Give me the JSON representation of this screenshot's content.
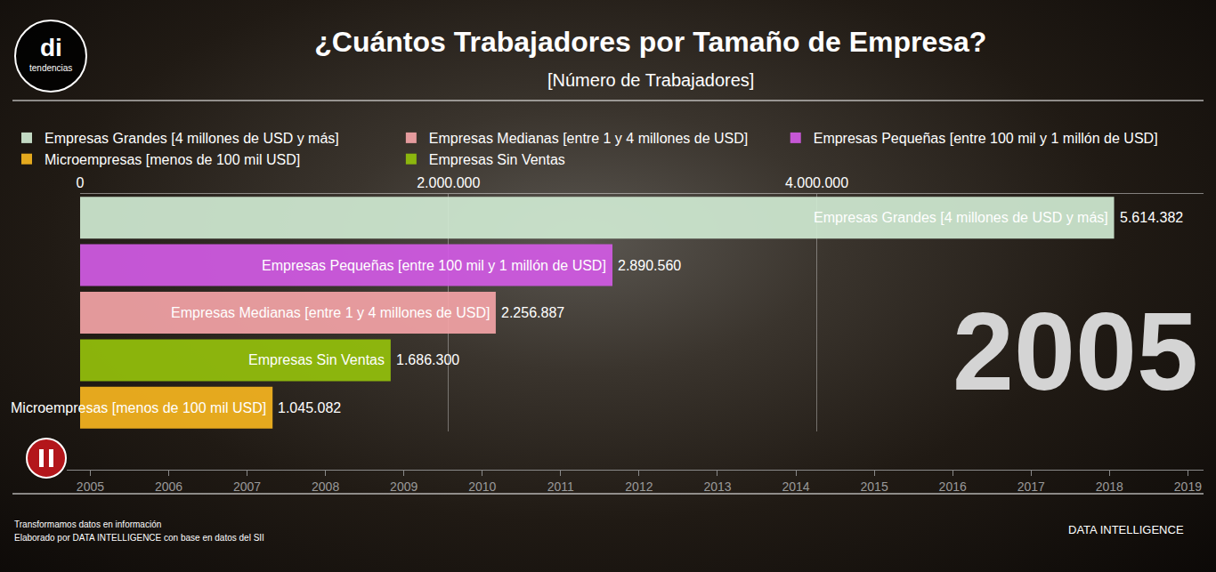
{
  "header": {
    "logo_mark": "di",
    "logo_text": "tendencias"
  },
  "chart_data": {
    "type": "bar",
    "orientation": "horizontal",
    "title": "¿Cuántos Trabajadores por Tamaño de Empresa?",
    "subtitle": "[Número de Trabajadores]",
    "categories": [
      "Empresas Grandes [4 millones de USD y más]",
      "Empresas Pequeñas [entre 100 mil y 1 millón de USD]",
      "Empresas Medianas [entre 1 y 4 millones de USD]",
      "Empresas Sin Ventas",
      "Microempresas [menos de 100 mil USD]"
    ],
    "series": [
      {
        "name": "Empresas Grandes [4 millones de USD y más]",
        "color": "#cfe8d1",
        "values": [
          5614382,
          null,
          null,
          null,
          null
        ],
        "value_labels": [
          "5.614.382",
          null,
          null,
          null,
          null
        ]
      },
      {
        "name": "Empresas Medianas [entre 1 y 4 millones de USD]",
        "color": "#f2a3a6",
        "values": [
          null,
          null,
          2256887,
          null,
          null
        ],
        "value_labels": [
          null,
          null,
          "2.256.887",
          null,
          null
        ]
      },
      {
        "name": "Empresas Pequeñas [entre 100 mil y 1 millón de USD]",
        "color": "#d15ae3",
        "values": [
          null,
          2890560,
          null,
          null,
          null
        ],
        "value_labels": [
          null,
          "2.890.560",
          null,
          null,
          null
        ]
      },
      {
        "name": "Microempresas [menos de 100 mil USD]",
        "color": "#f4b41f",
        "values": [
          null,
          null,
          null,
          null,
          1045082
        ],
        "value_labels": [
          null,
          null,
          null,
          null,
          "1.045.082"
        ]
      },
      {
        "name": "Empresas Sin Ventas",
        "color": "#93c00c",
        "values": [
          null,
          null,
          null,
          1686300,
          null
        ],
        "value_labels": [
          null,
          null,
          null,
          "1.686.300",
          null
        ]
      }
    ],
    "xlim": [
      0,
      6100000
    ],
    "xticks": [
      0,
      {
        "value": 2000000,
        "label": "2.000.000"
      },
      {
        "value": 4000000,
        "label": "4.000.000"
      }
    ],
    "grid": true,
    "legend": "top",
    "data_labels": true,
    "tick_labels": "x",
    "timeline": {
      "xlim": [
        2004.7,
        2019.2
      ],
      "xticks": [
        2005,
        2006,
        2007,
        2008,
        2009,
        2010,
        2011,
        2012,
        2013,
        2014,
        2015,
        2016,
        2017,
        2018,
        2019
      ],
      "current": 2005
    }
  },
  "footer": {
    "lines": [
      "Transformamos datos en información",
      "Elaborado por DATA INTELLIGENCE con base en datos del SII"
    ],
    "brand": "DATA INTELLIGENCE"
  }
}
